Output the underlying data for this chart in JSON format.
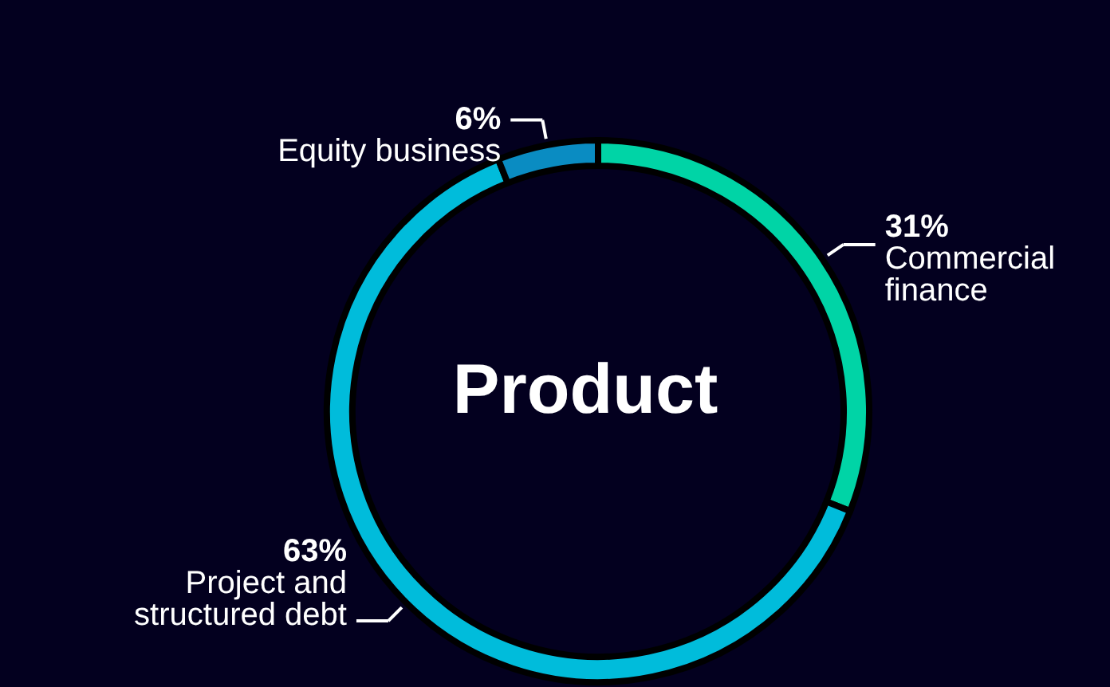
{
  "chart_data": {
    "type": "donut",
    "title": "Product",
    "categories": [
      "Commercial\nfinance",
      "Project and\nstructured debt",
      "Equity business"
    ],
    "values": [
      31,
      63,
      6
    ],
    "colors": [
      "#00d4a6",
      "#00bcdb",
      "#0a8cc2"
    ],
    "value_labels": [
      "31%",
      "63%",
      "6%"
    ]
  }
}
